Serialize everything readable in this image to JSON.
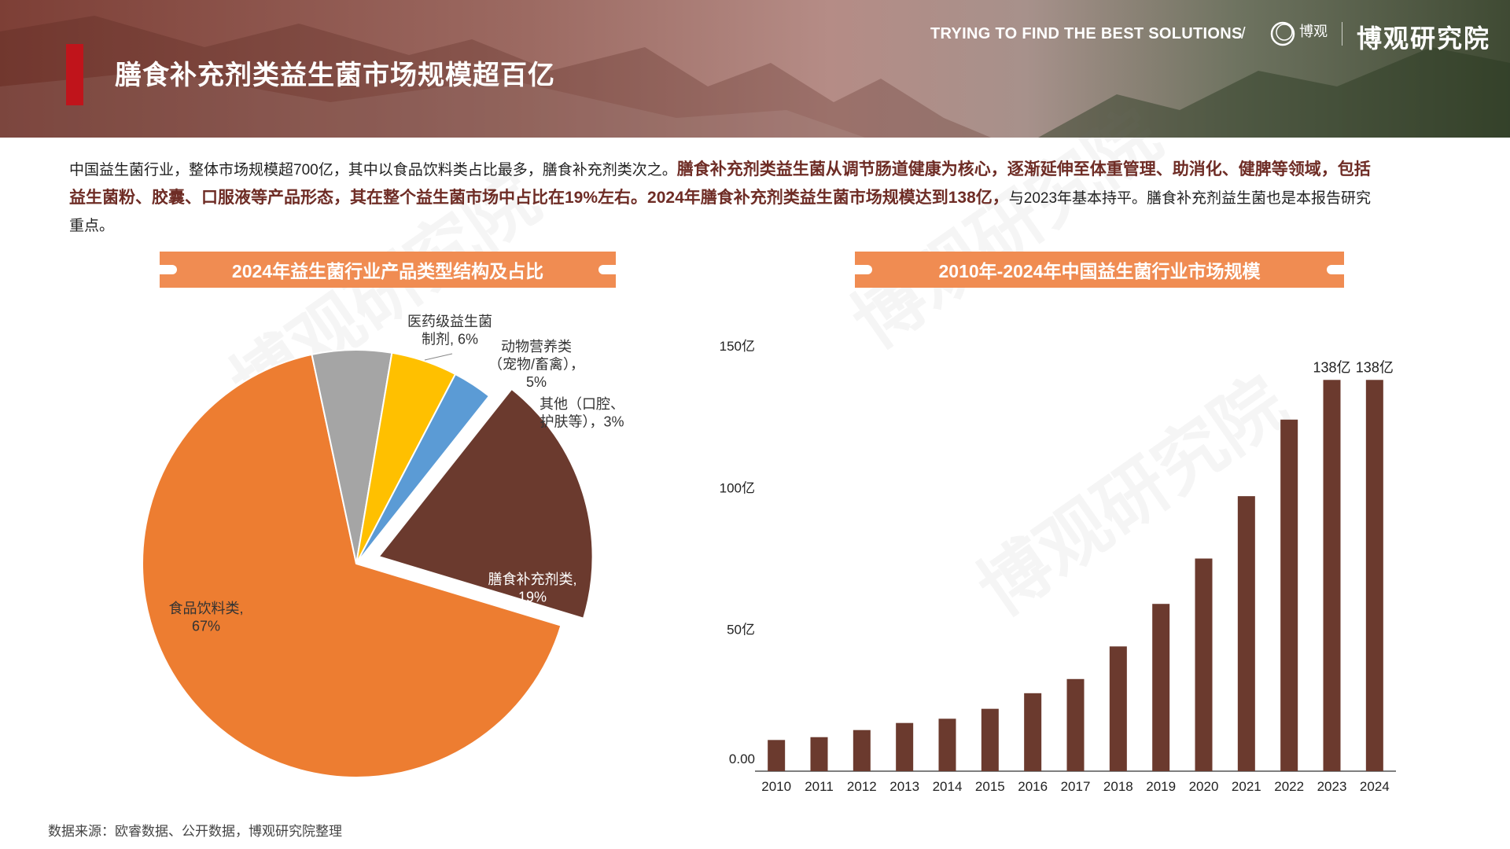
{
  "header": {
    "title": "膳食补充剂类益生菌市场规模超百亿",
    "tagline": "TRYING TO FIND THE BEST SOLUTIONS",
    "separator": "/",
    "logo_small": "博观",
    "logo_name": "博观研究院"
  },
  "intro": {
    "part1": "中国益生菌行业，整体市场规模超700亿，其中以食品饮料类占比最多，膳食补充剂类次之。",
    "part2": "膳食补充剂类益生菌从调节肠道健康为核心，逐渐延伸至体重管理、助消化、健脾等领域，包括益生菌粉、胶囊、口服液等产品形态，其在整个益生菌市场中占比在19%左右。2024年膳食补充剂类益生菌市场规模达到138亿，",
    "part3": "与2023年基本持平。膳食补充剂益生菌也是本报告研究重点。"
  },
  "watermark_text": "博观研究院",
  "source": "数据来源：欧睿数据、公开数据，博观研究院整理",
  "chart_data": [
    {
      "type": "pie",
      "title": "2024年益生菌行业产品类型结构及占比",
      "slices": [
        {
          "label": "食品饮料类",
          "value": 67,
          "display": "食品饮料类,\n67%",
          "color": "#ed7d31",
          "exploded": false
        },
        {
          "label": "医药级益生菌制剂",
          "value": 6,
          "display": "医药级益生菌\n制剂, 6%",
          "color": "#a5a5a5",
          "exploded": false
        },
        {
          "label": "动物营养类（宠物/畜禽）",
          "value": 5,
          "display": "动物营养类\n（宠物/畜禽），\n5%",
          "color": "#ffc000",
          "exploded": false
        },
        {
          "label": "其他（口腔、护肤等）",
          "value": 3,
          "display": "其他（口腔、\n护肤等），3%",
          "color": "#5b9bd5",
          "exploded": false
        },
        {
          "label": "膳食补充剂类",
          "value": 19,
          "display": "膳食补充剂类,\n19%",
          "color": "#6b3a2e",
          "exploded": true
        }
      ]
    },
    {
      "type": "bar",
      "title": "2010年-2024年中国益生菌行业市场规模",
      "categories": [
        "2010",
        "2011",
        "2012",
        "2013",
        "2014",
        "2015",
        "2016",
        "2017",
        "2018",
        "2019",
        "2020",
        "2021",
        "2022",
        "2023",
        "2024"
      ],
      "values": [
        11,
        12,
        14.5,
        17,
        18.5,
        22,
        27.5,
        32.5,
        44,
        59,
        75,
        97,
        124,
        138,
        138
      ],
      "data_labels": [
        "",
        "",
        "",
        "",
        "",
        "",
        "",
        "",
        "",
        "",
        "",
        "",
        "",
        "138亿",
        "138亿"
      ],
      "yticks": [
        {
          "value": 0,
          "label": "0.00"
        },
        {
          "value": 50,
          "label": "50亿"
        },
        {
          "value": 100,
          "label": "100亿"
        },
        {
          "value": 150,
          "label": "150亿"
        }
      ],
      "ylim": [
        0,
        150
      ],
      "color": "#6b3a2e"
    }
  ]
}
